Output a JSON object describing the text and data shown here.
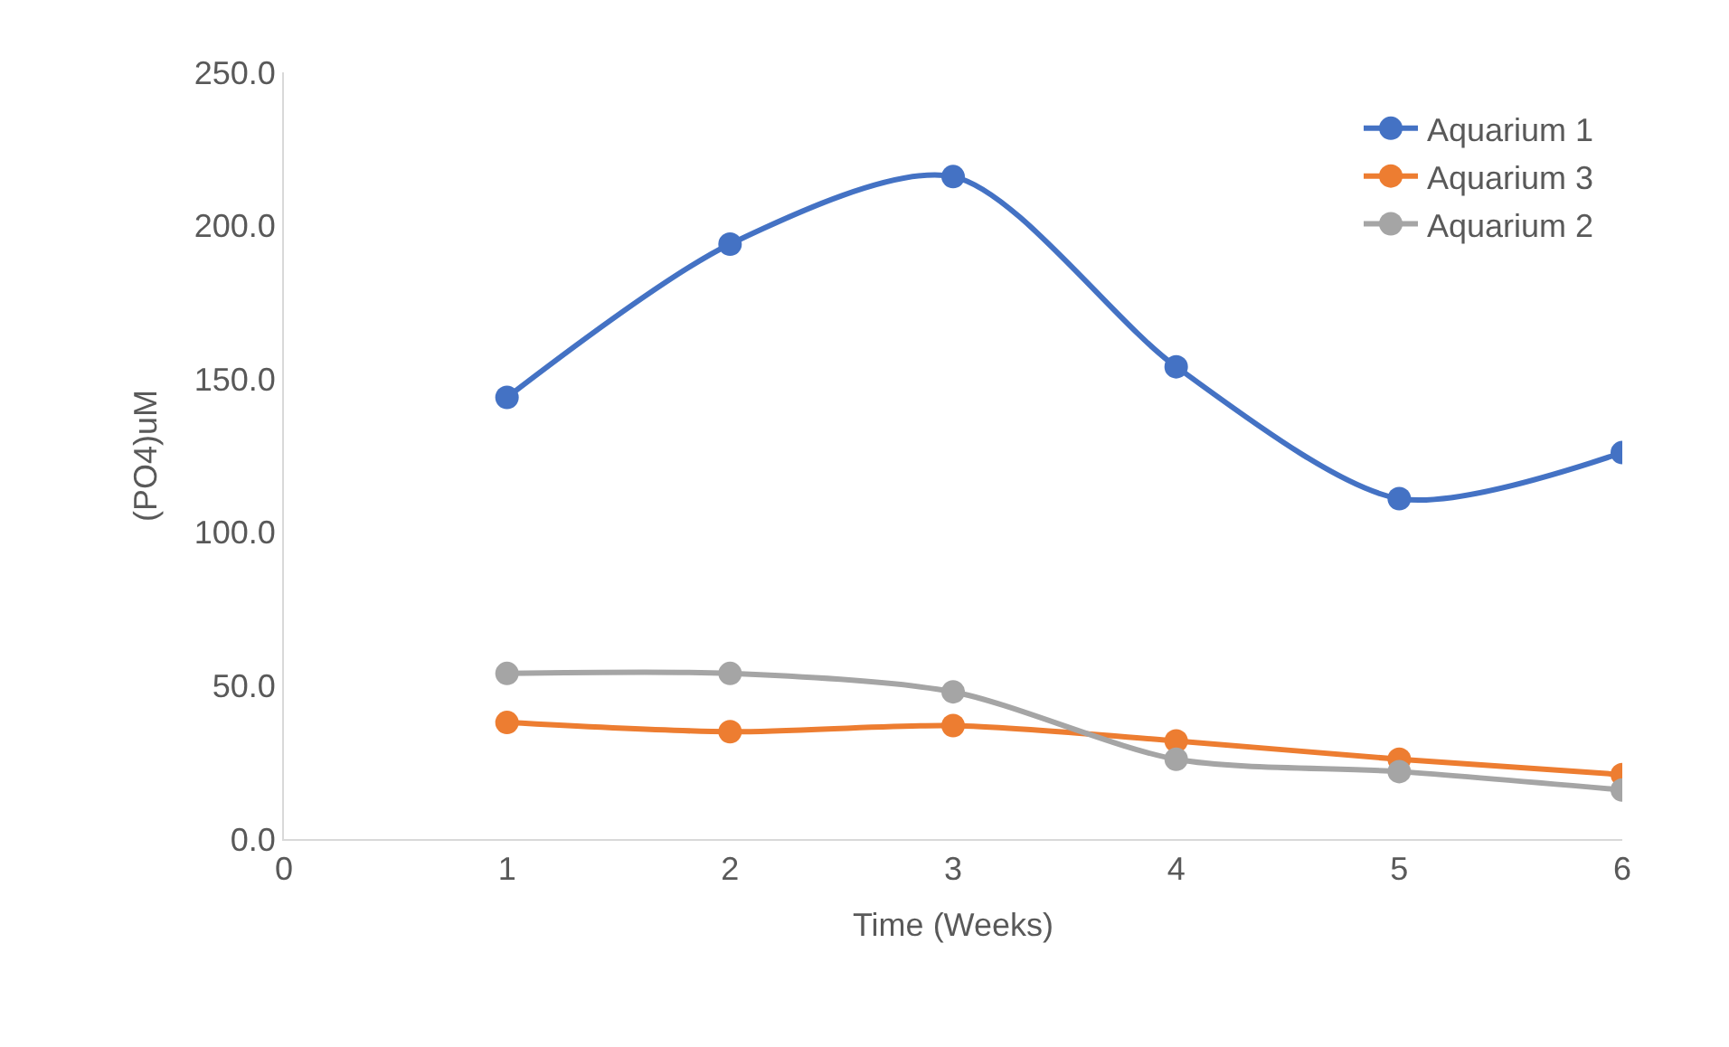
{
  "chart_data": {
    "type": "line",
    "xlabel": "Time (Weeks)",
    "ylabel": "(PO4)uM",
    "x": [
      1,
      2,
      3,
      4,
      5,
      6
    ],
    "series": [
      {
        "name": "Aquarium 1",
        "color": "#4472c4",
        "values": [
          144,
          194,
          216,
          154,
          111,
          126
        ]
      },
      {
        "name": "Aquarium 3",
        "color": "#ed7d31",
        "values": [
          38,
          35,
          37,
          32,
          26,
          21
        ]
      },
      {
        "name": "Aquarium 2",
        "color": "#a5a5a5",
        "values": [
          54,
          54,
          48,
          26,
          22,
          16
        ]
      }
    ],
    "xlim": [
      0,
      6
    ],
    "xticks": [
      0,
      1,
      2,
      3,
      4,
      5,
      6
    ],
    "ylim": [
      0,
      250
    ],
    "yticks": [
      {
        "value": 0,
        "label": "0.0"
      },
      {
        "value": 50,
        "label": "50.0"
      },
      {
        "value": 100,
        "label": "100.0"
      },
      {
        "value": 150,
        "label": "150.0"
      },
      {
        "value": 200,
        "label": "200.0"
      },
      {
        "value": 250,
        "label": "250.0"
      }
    ],
    "grid": false,
    "legend": "top right",
    "marker": "circle",
    "line_style": "solid"
  }
}
